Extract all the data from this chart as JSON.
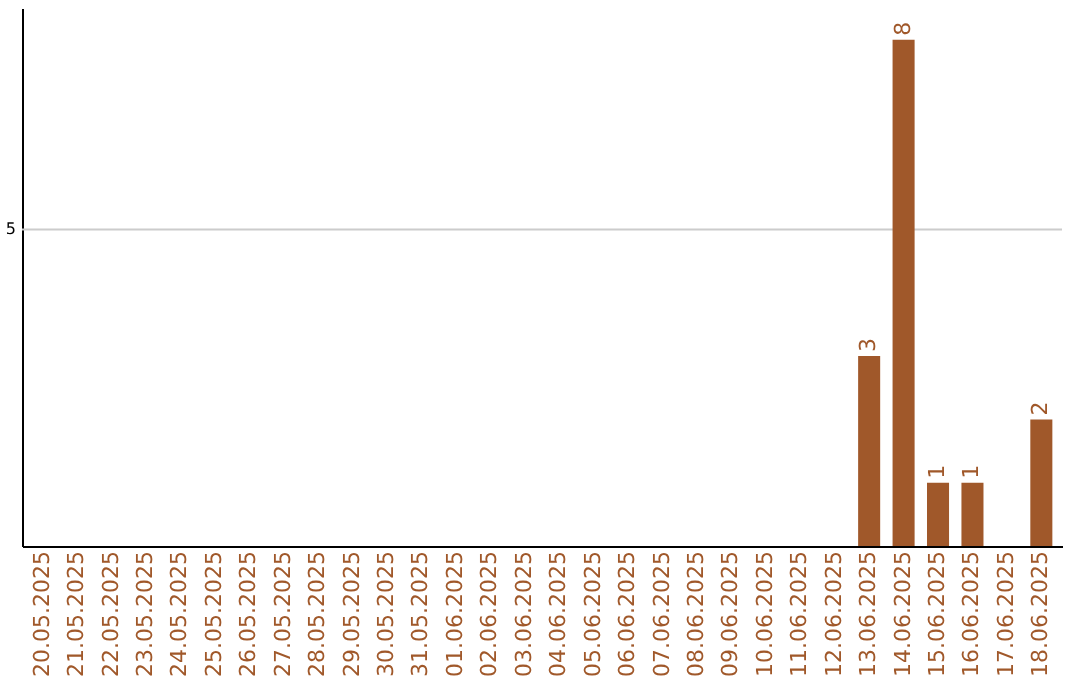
{
  "chart_data": {
    "type": "bar",
    "categories": [
      "20.05.2025",
      "21.05.2025",
      "22.05.2025",
      "23.05.2025",
      "24.05.2025",
      "25.05.2025",
      "26.05.2025",
      "27.05.2025",
      "28.05.2025",
      "29.05.2025",
      "30.05.2025",
      "31.05.2025",
      "01.06.2025",
      "02.06.2025",
      "03.06.2025",
      "04.06.2025",
      "05.06.2025",
      "06.06.2025",
      "07.06.2025",
      "08.06.2025",
      "09.06.2025",
      "10.06.2025",
      "11.06.2025",
      "12.06.2025",
      "13.06.2025",
      "14.06.2025",
      "15.06.2025",
      "16.06.2025",
      "17.06.2025",
      "18.06.2025"
    ],
    "values": [
      null,
      null,
      null,
      null,
      null,
      null,
      null,
      null,
      null,
      null,
      null,
      null,
      null,
      null,
      null,
      null,
      null,
      null,
      null,
      null,
      null,
      null,
      null,
      null,
      3,
      8,
      1,
      1,
      null,
      2
    ],
    "data_labels": true,
    "ylim": [
      0,
      8.5
    ],
    "color": "#a0582a",
    "ref_lines": [
      {
        "axis": "y",
        "value": 5,
        "label": "5",
        "color": "#cccccc"
      }
    ]
  }
}
